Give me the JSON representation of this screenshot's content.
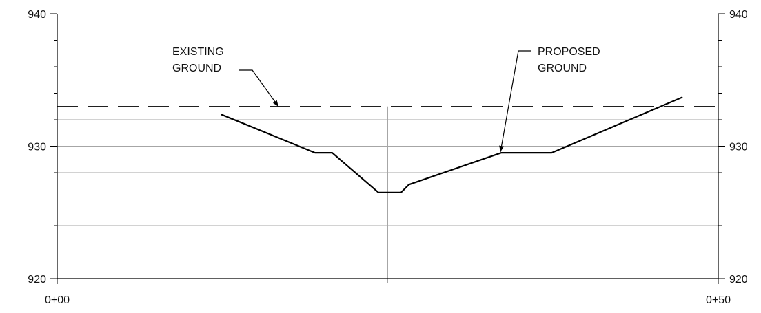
{
  "chart_data": {
    "type": "line",
    "title": "",
    "xlabel": "",
    "ylabel": "",
    "xlim": [
      0,
      50
    ],
    "ylim": [
      920,
      940
    ],
    "x_ticks": [
      {
        "value": 0,
        "label": "0+00"
      },
      {
        "value": 50,
        "label": "0+50"
      }
    ],
    "y_ticks": [
      {
        "value": 920,
        "label": "920"
      },
      {
        "value": 930,
        "label": "930"
      },
      {
        "value": 940,
        "label": "940"
      }
    ],
    "series": [
      {
        "key": "existing",
        "style": "dashed",
        "color": "#000000",
        "points": [
          [
            0,
            933
          ],
          [
            50,
            933
          ]
        ]
      },
      {
        "key": "proposed",
        "style": "solid",
        "color": "#000000",
        "points": [
          [
            12.4,
            932.4
          ],
          [
            19.5,
            929.5
          ],
          [
            20.8,
            929.5
          ],
          [
            24.3,
            926.5
          ],
          [
            26.0,
            926.5
          ],
          [
            26.6,
            927.1
          ],
          [
            33.6,
            929.5
          ],
          [
            37.4,
            929.5
          ],
          [
            47.3,
            933.7
          ]
        ]
      }
    ],
    "annotations": [
      {
        "key": "existing",
        "lines": [
          "EXISTING",
          "GROUND"
        ]
      },
      {
        "key": "proposed",
        "lines": [
          "PROPOSED",
          "GROUND"
        ]
      }
    ]
  }
}
